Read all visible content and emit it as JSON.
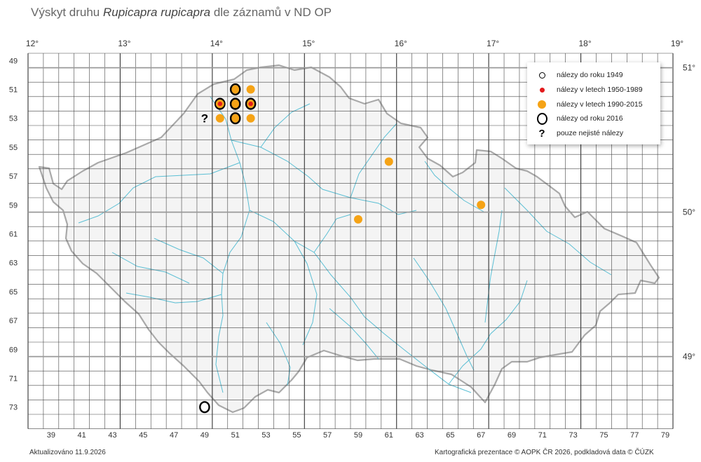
{
  "title": {
    "prefix": "Výskyt druhu",
    "species": "Rupicapra rupicapra",
    "suffix": "dle záznamů v ND OP"
  },
  "map": {
    "longitude_labels": [
      "12°",
      "13°",
      "14°",
      "15°",
      "16°",
      "17°",
      "18°",
      "19°"
    ],
    "latitude_labels": [
      "51°",
      "50°",
      "49°"
    ],
    "row_labels": [
      "49",
      "51",
      "53",
      "55",
      "57",
      "59",
      "61",
      "63",
      "65",
      "67",
      "69",
      "71",
      "73"
    ],
    "col_labels": [
      "39",
      "41",
      "43",
      "45",
      "47",
      "49",
      "51",
      "53",
      "55",
      "57",
      "59",
      "61",
      "63",
      "65",
      "67",
      "69",
      "71",
      "73",
      "75",
      "77",
      "79"
    ],
    "colors": {
      "grid": "#333333",
      "major_grid": "#999999",
      "border": "#a7a7a7",
      "rivers": "#5bbfd4",
      "records_1990_2015": "#f5a316",
      "records_1950_1989": "#e31a1c"
    }
  },
  "records": [
    {
      "square": "5052",
      "categories": [
        "1990-2015"
      ]
    },
    {
      "square": "5051",
      "categories": [
        "1990-2015",
        "2016+"
      ]
    },
    {
      "square": "5150",
      "categories": [
        "1990-2015",
        "2016+"
      ]
    },
    {
      "square": "5151",
      "categories": [
        "1990-2015",
        "2016+"
      ]
    },
    {
      "square": "5250",
      "categories": [
        "1990-2015"
      ]
    },
    {
      "square": "5251",
      "categories": [
        "1990-2015",
        "2016+"
      ]
    },
    {
      "square": "5252",
      "categories": [
        "1990-2015"
      ]
    },
    {
      "square": "5150",
      "categories": [
        "1950-1989",
        "1990-2015"
      ]
    },
    {
      "square": "5151",
      "categories": [
        "1990-2015",
        "2016+"
      ]
    },
    {
      "square": "5152",
      "categories": [
        "1950-1989",
        "1990-2015",
        "2016+"
      ]
    },
    {
      "square": "5249",
      "categories": [
        "uncertain"
      ]
    },
    {
      "square": "5561",
      "categories": [
        "1990-2015"
      ]
    },
    {
      "square": "5867",
      "categories": [
        "1990-2015"
      ]
    },
    {
      "square": "5959",
      "categories": [
        "1990-2015"
      ]
    },
    {
      "square": "7249",
      "categories": [
        "2016+"
      ]
    }
  ],
  "legend": {
    "items": [
      {
        "label": "nálezy do roku 1949"
      },
      {
        "label": "nálezy v letech 1950-1989"
      },
      {
        "label": "nálezy v letech 1990-2015"
      },
      {
        "label": "nálezy od roku 2016"
      },
      {
        "label": "pouze nejisté nálezy"
      }
    ],
    "uncertain_symbol": "?"
  },
  "footer": {
    "updated": "Aktualizováno 11.9.2026",
    "credits": "Kartografická prezentace © AOPK ČR 2026, podkladová data © ČÚZK"
  }
}
